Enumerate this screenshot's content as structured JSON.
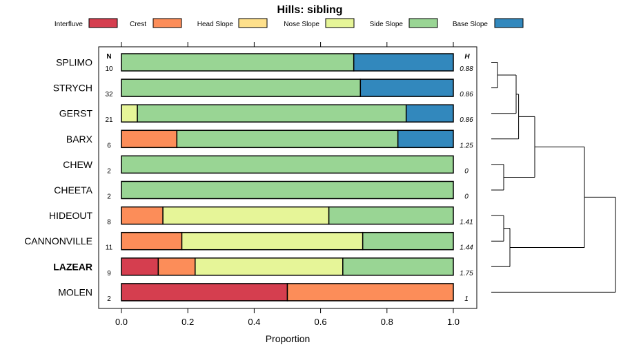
{
  "chart_data": {
    "type": "bar",
    "stacked": true,
    "orientation": "horizontal",
    "title": "Hills: sibling",
    "xlabel": "Proportion",
    "ylabel": "",
    "xlim": [
      0,
      1
    ],
    "xticks": [
      0,
      0.2,
      0.4,
      0.6,
      0.8,
      1
    ],
    "xtick_labels": [
      "0.0",
      "0.2",
      "0.4",
      "0.6",
      "0.8",
      "1.0"
    ],
    "n_header": "N",
    "h_header": "H",
    "legend_position": "top",
    "series": [
      {
        "name": "Interfluve",
        "color": "#d53e4f"
      },
      {
        "name": "Crest",
        "color": "#fc8d59"
      },
      {
        "name": "Head Slope",
        "color": "#fee08b"
      },
      {
        "name": "Nose Slope",
        "color": "#e6f598"
      },
      {
        "name": "Side Slope",
        "color": "#99d594"
      },
      {
        "name": "Base Slope",
        "color": "#3288bd"
      }
    ],
    "rows": [
      {
        "label": "SPLIMO",
        "n": "10",
        "h": "0.88",
        "bold": false,
        "values": [
          0,
          0,
          0,
          0,
          0.7,
          0.3
        ]
      },
      {
        "label": "STRYCH",
        "n": "32",
        "h": "0.86",
        "bold": false,
        "values": [
          0,
          0,
          0,
          0,
          0.72,
          0.28
        ]
      },
      {
        "label": "GERST",
        "n": "21",
        "h": "0.86",
        "bold": false,
        "values": [
          0,
          0,
          0,
          0.048,
          0.81,
          0.142
        ]
      },
      {
        "label": "BARX",
        "n": "6",
        "h": "1.25",
        "bold": false,
        "values": [
          0,
          0.167,
          0,
          0,
          0.666,
          0.167
        ]
      },
      {
        "label": "CHEW",
        "n": "2",
        "h": "0",
        "bold": false,
        "values": [
          0,
          0,
          0,
          0,
          1.0,
          0
        ]
      },
      {
        "label": "CHEETA",
        "n": "2",
        "h": "0",
        "bold": false,
        "values": [
          0,
          0,
          0,
          0,
          1.0,
          0
        ]
      },
      {
        "label": "HIDEOUT",
        "n": "8",
        "h": "1.41",
        "bold": false,
        "values": [
          0,
          0.125,
          0,
          0.5,
          0.375,
          0
        ]
      },
      {
        "label": "CANNONVILLE",
        "n": "11",
        "h": "1.44",
        "bold": false,
        "values": [
          0,
          0.182,
          0,
          0.545,
          0.273,
          0
        ]
      },
      {
        "label": "LAZEAR",
        "n": "9",
        "h": "1.75",
        "bold": true,
        "values": [
          0.111,
          0.111,
          0,
          0.445,
          0.333,
          0
        ]
      },
      {
        "label": "MOLEN",
        "n": "2",
        "h": "1",
        "bold": false,
        "values": [
          0.5,
          0.5,
          0,
          0,
          0,
          0
        ]
      }
    ],
    "dendrogram": {
      "merges": [
        {
          "a": 0,
          "b": 1,
          "height": 0.05
        },
        {
          "a": "m0",
          "b": 2,
          "height": 0.2
        },
        {
          "a": 4,
          "b": 5,
          "height": 0.1
        },
        {
          "a": 6,
          "b": 7,
          "height": 0.1
        },
        {
          "a": "m3",
          "b": 8,
          "height": 0.15
        },
        {
          "a": "m1",
          "b": 3,
          "height": 0.22
        },
        {
          "a": "m5",
          "b": "m2",
          "height": 0.35
        },
        {
          "a": "m6",
          "b": "m4",
          "height": 0.75
        },
        {
          "a": "m7",
          "b": 9,
          "height": 1.0
        }
      ]
    }
  }
}
